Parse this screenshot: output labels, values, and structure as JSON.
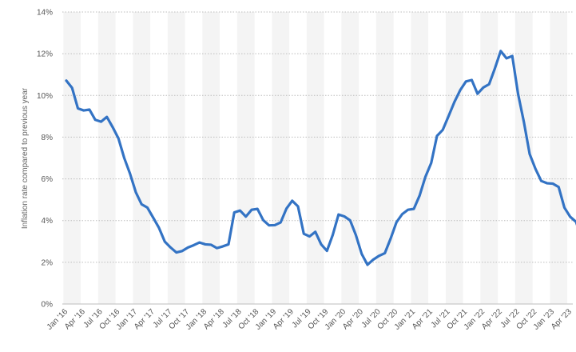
{
  "colors": {
    "line": "#3373C4",
    "grid": "#bdbdbd",
    "band": "#f4f4f4",
    "baseline": "#bdbdbd"
  },
  "chart_data": {
    "type": "line",
    "title": "",
    "xlabel": "",
    "ylabel": "Inflation rate compared to previous year",
    "ylim": [
      0,
      14
    ],
    "yticks": [
      "0%",
      "2%",
      "4%",
      "6%",
      "8%",
      "10%",
      "12%",
      "14%"
    ],
    "grid": "horizontal dotted",
    "legend": "none",
    "x_tick_labels": [
      "Jan '16",
      "Apr '16",
      "Jul '16",
      "Oct '16",
      "Jan '17",
      "Apr '17",
      "Jul '17",
      "Oct '17",
      "Jan '18",
      "Apr '18",
      "Jul '18",
      "Oct '18",
      "Jan '19",
      "Apr '19",
      "Jul '19",
      "Oct '19",
      "Jan '20",
      "Apr '20",
      "Jul '20",
      "Oct '20",
      "Jan '21",
      "Apr '21",
      "Jul '21",
      "Oct '21",
      "Jan '22",
      "Apr '22",
      "Jul '22",
      "Oct '22",
      "Jan '23",
      "Apr '23"
    ],
    "x": [
      "2016-01",
      "2016-02",
      "2016-03",
      "2016-04",
      "2016-05",
      "2016-06",
      "2016-07",
      "2016-08",
      "2016-09",
      "2016-10",
      "2016-11",
      "2016-12",
      "2017-01",
      "2017-02",
      "2017-03",
      "2017-04",
      "2017-05",
      "2017-06",
      "2017-07",
      "2017-08",
      "2017-09",
      "2017-10",
      "2017-11",
      "2017-12",
      "2018-01",
      "2018-02",
      "2018-03",
      "2018-04",
      "2018-05",
      "2018-06",
      "2018-07",
      "2018-08",
      "2018-09",
      "2018-10",
      "2018-11",
      "2018-12",
      "2019-01",
      "2019-02",
      "2019-03",
      "2019-04",
      "2019-05",
      "2019-06",
      "2019-07",
      "2019-08",
      "2019-09",
      "2019-10",
      "2019-11",
      "2019-12",
      "2020-01",
      "2020-02",
      "2020-03",
      "2020-04",
      "2020-05",
      "2020-06",
      "2020-07",
      "2020-08",
      "2020-09",
      "2020-10",
      "2020-11",
      "2020-12",
      "2021-01",
      "2021-02",
      "2021-03",
      "2021-04",
      "2021-05",
      "2021-06",
      "2021-07",
      "2021-08",
      "2021-09",
      "2021-10",
      "2021-11",
      "2021-12",
      "2022-01",
      "2022-02",
      "2022-03",
      "2022-04",
      "2022-05",
      "2022-06",
      "2022-07",
      "2022-08",
      "2022-09",
      "2022-10",
      "2022-11",
      "2022-12",
      "2023-01",
      "2023-02",
      "2023-03",
      "2023-04",
      "2023-05",
      "2023-06"
    ],
    "values": [
      10.71,
      10.36,
      9.38,
      9.28,
      9.32,
      8.83,
      8.74,
      8.97,
      8.48,
      7.94,
      7.0,
      6.25,
      5.36,
      4.78,
      4.62,
      4.14,
      3.65,
      2.99,
      2.71,
      2.47,
      2.54,
      2.71,
      2.82,
      2.95,
      2.86,
      2.84,
      2.68,
      2.76,
      2.86,
      4.39,
      4.48,
      4.19,
      4.52,
      4.56,
      4.02,
      3.77,
      3.78,
      3.91,
      4.57,
      4.95,
      4.68,
      3.37,
      3.24,
      3.46,
      2.86,
      2.55,
      3.31,
      4.29,
      4.2,
      4.01,
      3.3,
      2.4,
      1.88,
      2.13,
      2.31,
      2.44,
      3.14,
      3.92,
      4.31,
      4.52,
      4.56,
      5.2,
      6.1,
      6.76,
      8.06,
      8.35,
      9.01,
      9.68,
      10.25,
      10.67,
      10.74,
      10.08,
      10.38,
      10.54,
      11.3,
      12.13,
      11.78,
      11.89,
      10.07,
      8.73,
      7.19,
      6.48,
      5.9,
      5.79,
      5.77,
      5.61,
      4.62,
      4.18,
      3.94,
      3.14
    ]
  }
}
